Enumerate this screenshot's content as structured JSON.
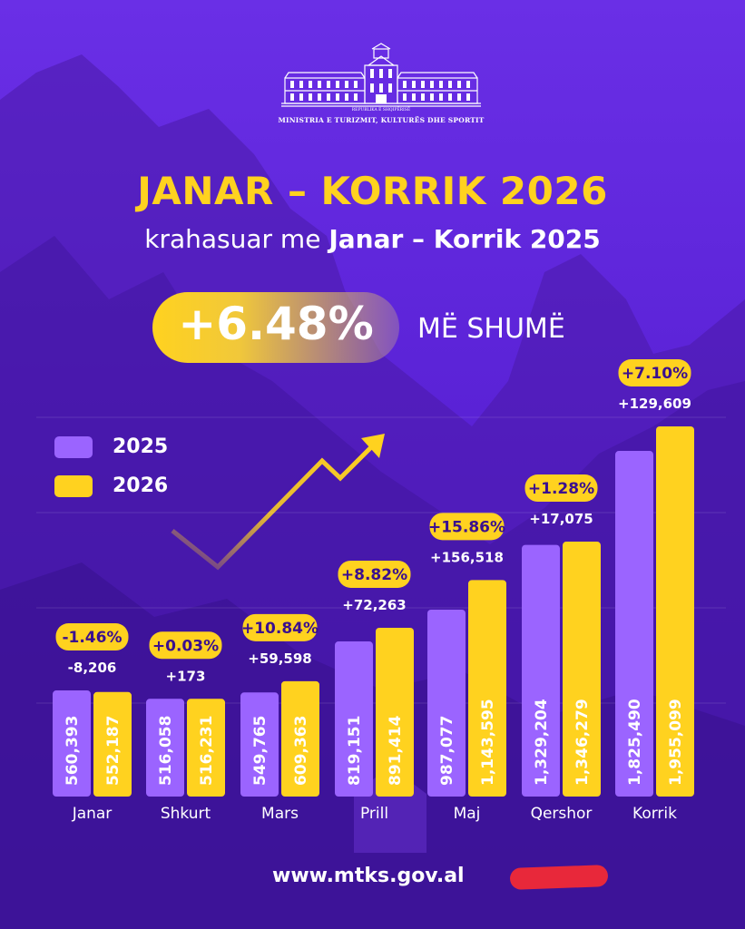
{
  "header": {
    "ministry_small": "REPUBLIKA E SHQIPËRISË",
    "ministry": "MINISTRIA E TURIZMIT, KULTURËS DHE SPORTIT"
  },
  "title": "JANAR – KORRIK 2026",
  "subtitle_pre": "krahasuar me ",
  "subtitle_bold": "Janar – Korrik 2025",
  "headline_change": "+6.48%",
  "headline_suffix": "MË SHUMË",
  "website": "www.mtks.gov.al",
  "colors": {
    "series_2025": "#9b64ff",
    "series_2026": "#ffd21f",
    "title": "#ffd21f",
    "pill_text": "#3a0f8f"
  },
  "chart_data": {
    "type": "bar",
    "categories": [
      "Janar",
      "Shkurt",
      "Mars",
      "Prill",
      "Maj",
      "Qershor",
      "Korrik"
    ],
    "series": [
      {
        "name": "2025",
        "values": [
          560393,
          516058,
          549765,
          819151,
          987077,
          1329204,
          1825490
        ]
      },
      {
        "name": "2026",
        "values": [
          552187,
          516231,
          609363,
          891414,
          1143595,
          1346279,
          1955099
        ]
      }
    ],
    "value_labels_2025": [
      "560,393",
      "516,058",
      "549,765",
      "819,151",
      "987,077",
      "1,329,204",
      "1,825,490"
    ],
    "value_labels_2026": [
      "552,187",
      "516,231",
      "609,363",
      "891,414",
      "1,143,595",
      "1,346,279",
      "1,955,099"
    ],
    "pct_change": [
      "-1.46%",
      "+0.03%",
      "+10.84%",
      "+8.82%",
      "+15.86%",
      "+1.28%",
      "+7.10%"
    ],
    "abs_change": [
      "-8,206",
      "+173",
      "+59,598",
      "+72,263",
      "+156,518",
      "+17,075",
      "+129,609"
    ],
    "legend": [
      "2025",
      "2026"
    ],
    "legend_position": "top-left",
    "grid": false
  }
}
